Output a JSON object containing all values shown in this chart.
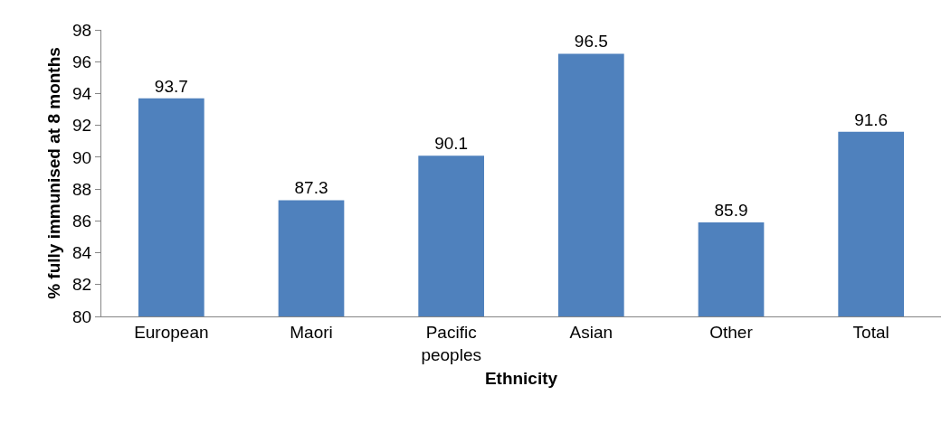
{
  "chart_data": {
    "type": "bar",
    "xlabel": "Ethnicity",
    "ylabel": "% fully immunised at 8 months",
    "categories": [
      "European",
      "Maori",
      "Pacific peoples",
      "Asian",
      "Other",
      "Total"
    ],
    "values": [
      93.7,
      87.3,
      90.1,
      96.5,
      85.9,
      91.6
    ],
    "color": "#4f81bd",
    "ylim": [
      80,
      98
    ],
    "yticks": [
      80,
      82,
      84,
      86,
      88,
      90,
      92,
      94,
      96,
      98
    ],
    "data_labels": true
  }
}
